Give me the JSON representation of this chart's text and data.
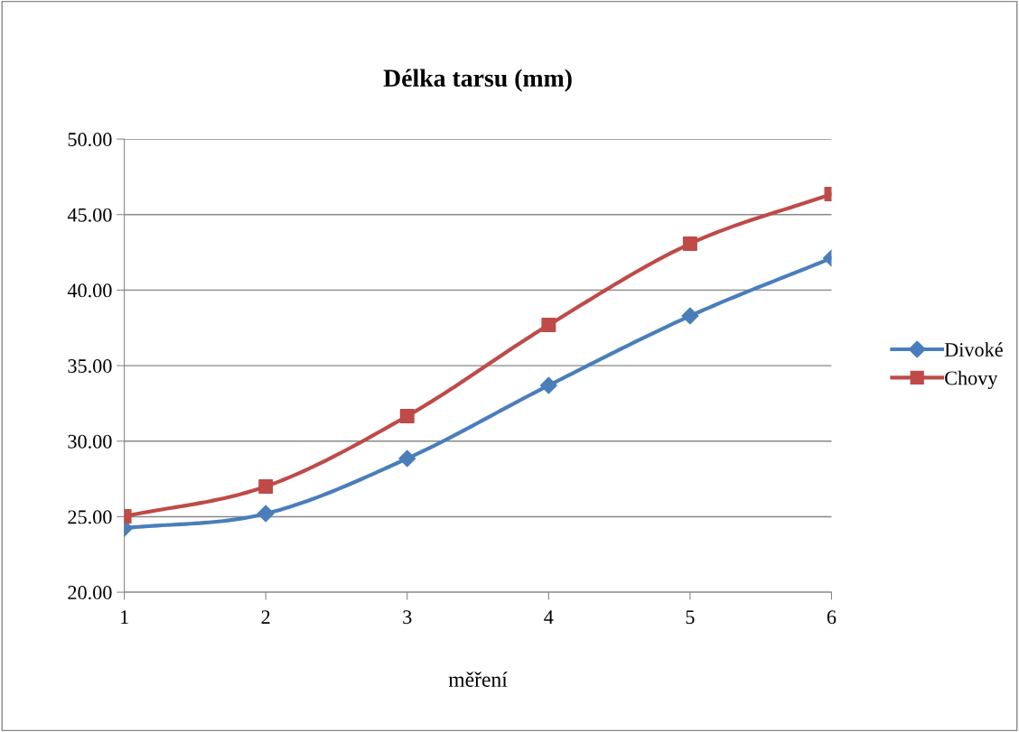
{
  "chart_data": {
    "type": "line",
    "title": "Délka tarsu (mm)",
    "xlabel": "měření",
    "x": [
      1,
      2,
      3,
      4,
      5,
      6
    ],
    "xlim": [
      1,
      6
    ],
    "xticks": [
      1,
      2,
      3,
      4,
      5,
      6
    ],
    "ylim": [
      20,
      50
    ],
    "yticks": [
      {
        "value": 20,
        "label": "20.00"
      },
      {
        "value": 25,
        "label": "25.00"
      },
      {
        "value": 30,
        "label": "30.00"
      },
      {
        "value": 35,
        "label": "35.00"
      },
      {
        "value": 40,
        "label": "40.00"
      },
      {
        "value": 45,
        "label": "45.00"
      },
      {
        "value": 50,
        "label": "50.00"
      }
    ],
    "grid": "y",
    "legend": "right",
    "line_style": "solid",
    "series": [
      {
        "name": "Divoké",
        "color": "#4a7ebb",
        "marker": "diamond",
        "values": [
          24.24,
          25.2,
          28.85,
          33.69,
          38.29,
          42.12
        ]
      },
      {
        "name": "Chovy",
        "color": "#be4b48",
        "marker": "square",
        "values": [
          25.02,
          27.0,
          31.66,
          37.69,
          43.07,
          46.36
        ]
      }
    ]
  }
}
